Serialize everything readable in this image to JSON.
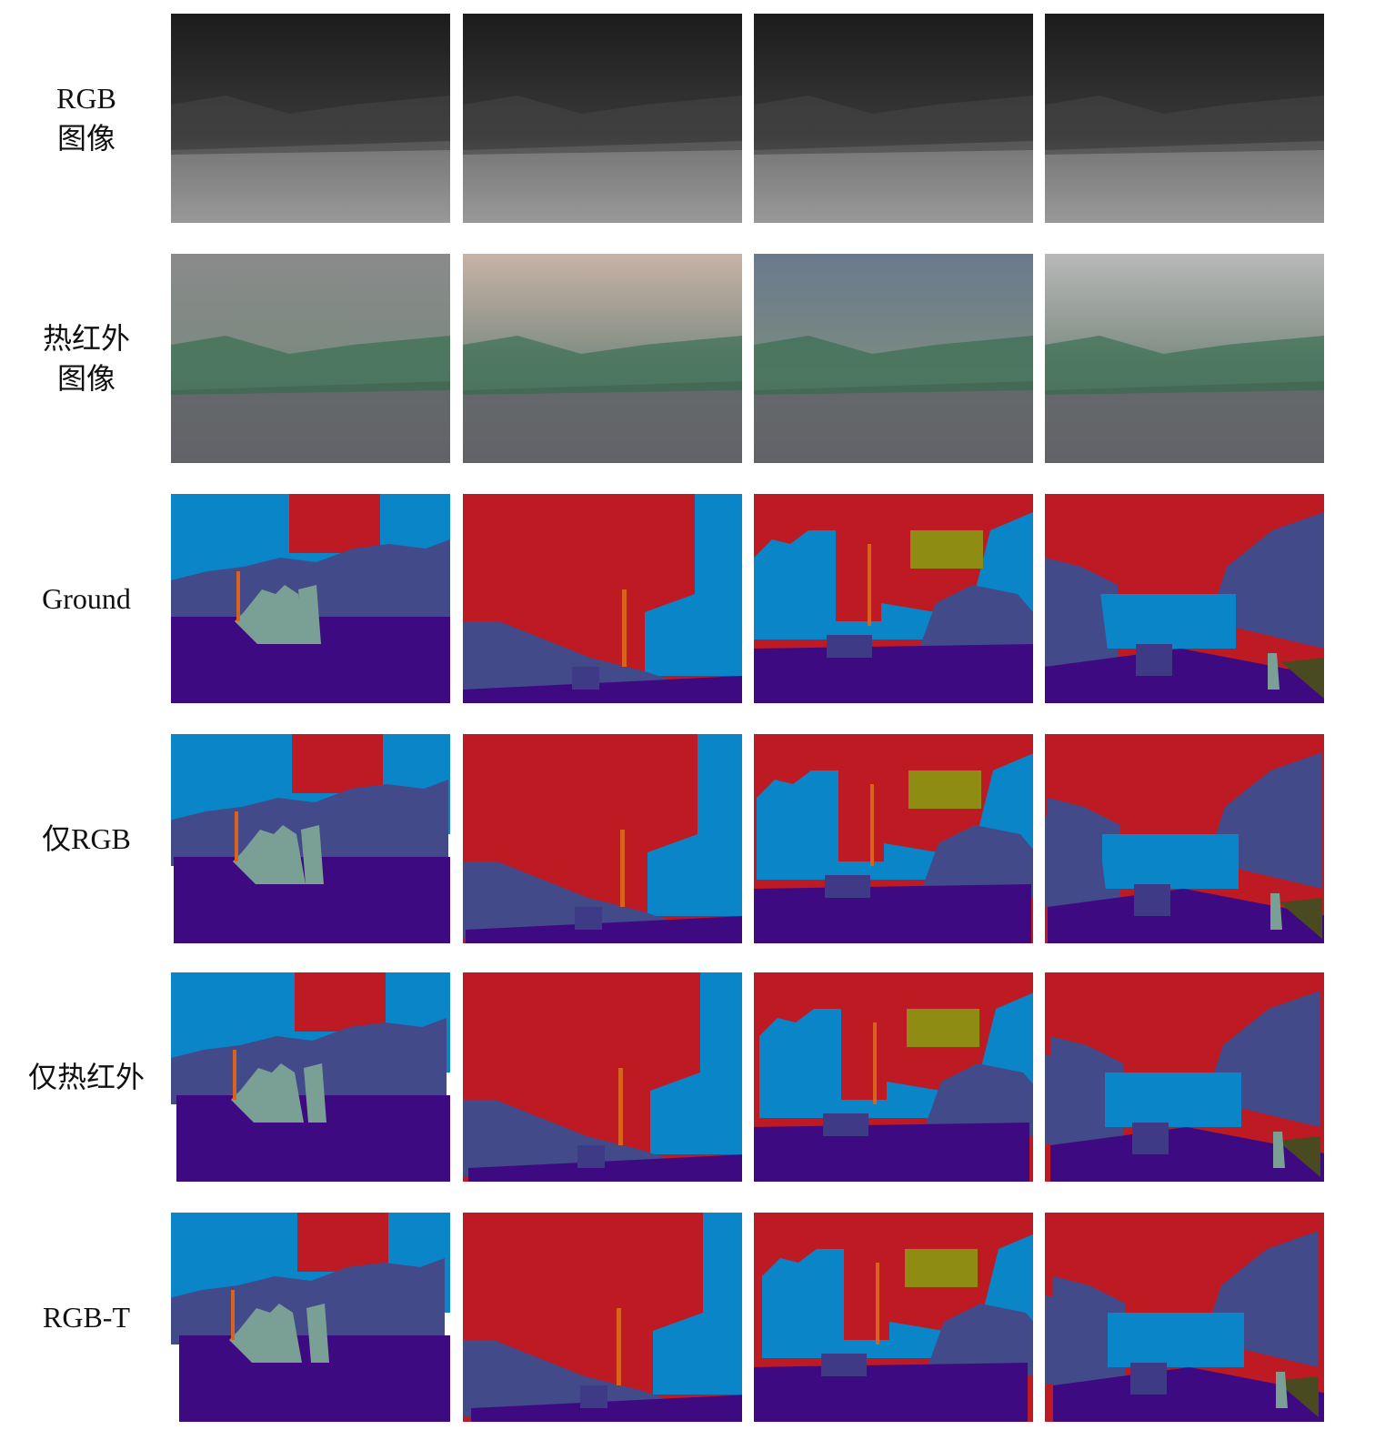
{
  "rows": [
    [
      "RGB",
      "图像"
    ],
    [
      "热红外",
      "图像"
    ],
    [
      "Ground"
    ],
    [
      "仅RGB"
    ],
    [
      "仅热红外"
    ],
    [
      "RGB-T"
    ]
  ]
}
